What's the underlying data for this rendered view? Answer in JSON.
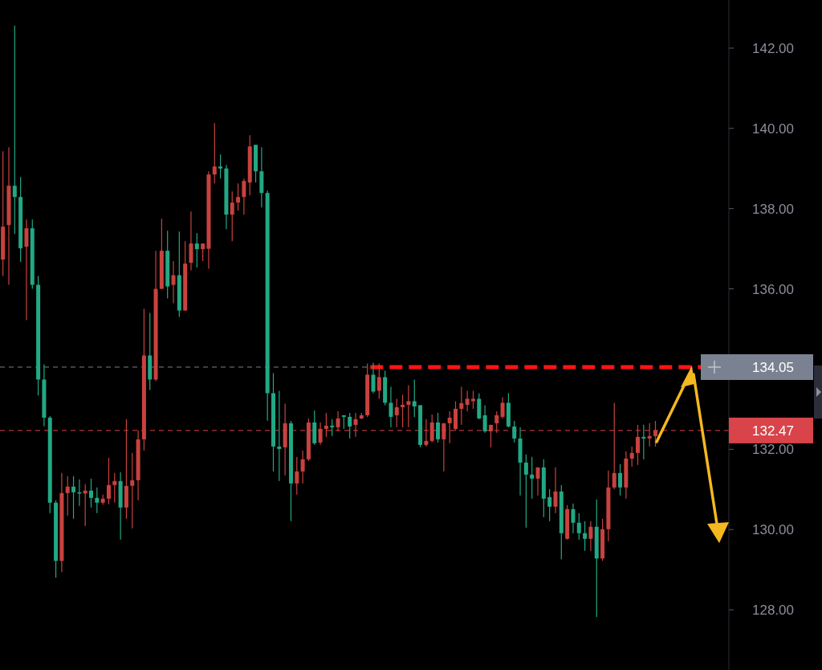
{
  "chart_data": {
    "type": "candlestick",
    "categories": [
      null,
      null,
      null,
      null,
      null,
      null,
      null,
      null,
      null,
      null,
      null,
      null,
      null,
      null,
      null,
      null,
      null,
      null,
      null,
      null,
      null,
      null,
      null,
      null,
      null,
      null,
      null,
      null,
      null,
      null,
      null,
      null,
      null,
      null,
      null,
      null,
      null,
      null,
      null,
      null,
      null,
      null,
      null,
      null,
      null,
      null,
      null,
      null,
      null,
      null,
      null,
      null,
      null,
      null,
      null,
      null,
      null,
      null,
      null,
      null,
      null,
      null,
      null,
      null,
      null,
      null,
      null,
      null,
      null,
      null,
      null,
      null,
      null,
      null,
      null,
      null,
      null,
      null,
      null,
      null,
      null,
      null,
      null,
      null,
      null,
      null,
      null,
      null,
      null,
      null,
      null,
      null,
      null,
      null,
      null,
      null,
      null,
      null,
      null,
      null,
      null,
      null,
      null,
      null,
      null,
      null,
      null,
      null,
      null,
      null,
      null,
      null,
      null,
      null,
      null,
      null,
      null,
      null,
      null,
      null,
      null,
      null,
      null,
      null
    ],
    "ohlc": [
      [
        136.73,
        139.43,
        136.32,
        137.55
      ],
      [
        137.59,
        139.53,
        136.1,
        138.57
      ],
      [
        138.57,
        142.56,
        137.37,
        138.29
      ],
      [
        138.29,
        138.79,
        136.67,
        137.01
      ],
      [
        137.05,
        137.73,
        135.22,
        137.51
      ],
      [
        137.51,
        137.73,
        136.0,
        136.1
      ],
      [
        136.1,
        136.32,
        133.34,
        133.74
      ],
      [
        133.74,
        134.12,
        132.57,
        132.79
      ],
      [
        132.79,
        132.83,
        130.41,
        130.67
      ],
      [
        130.67,
        130.73,
        128.8,
        129.22
      ],
      [
        129.22,
        131.41,
        128.94,
        130.91
      ],
      [
        130.91,
        131.33,
        130.35,
        131.07
      ],
      [
        131.07,
        131.33,
        130.27,
        130.93
      ],
      [
        130.93,
        131.25,
        130.59,
        130.9
      ],
      [
        130.9,
        131.13,
        130.09,
        130.97
      ],
      [
        130.97,
        131.27,
        130.55,
        130.79
      ],
      [
        130.79,
        131.05,
        130.41,
        130.67
      ],
      [
        130.67,
        130.87,
        130.62,
        130.77
      ],
      [
        130.77,
        131.79,
        130.63,
        131.11
      ],
      [
        131.11,
        131.41,
        130.67,
        131.21
      ],
      [
        131.21,
        131.43,
        129.75,
        130.55
      ],
      [
        130.55,
        132.75,
        130.27,
        131.09
      ],
      [
        131.09,
        131.91,
        130.03,
        131.23
      ],
      [
        131.23,
        132.47,
        130.73,
        132.25
      ],
      [
        132.25,
        135.5,
        131.97,
        134.34
      ],
      [
        134.34,
        135.4,
        133.48,
        133.74
      ],
      [
        133.74,
        136.95,
        133.7,
        136.0
      ],
      [
        136.0,
        137.75,
        136.0,
        136.95
      ],
      [
        136.95,
        137.45,
        135.76,
        136.06
      ],
      [
        136.1,
        136.69,
        135.64,
        136.34
      ],
      [
        136.34,
        137.43,
        135.3,
        135.46
      ],
      [
        135.46,
        137.19,
        135.46,
        136.63
      ],
      [
        136.65,
        137.93,
        136.46,
        137.13
      ],
      [
        137.13,
        137.39,
        136.53,
        136.99
      ],
      [
        136.99,
        137.13,
        136.69,
        137.13
      ],
      [
        137.0,
        138.93,
        136.5,
        138.85
      ],
      [
        138.85,
        140.13,
        138.63,
        139.05
      ],
      [
        139.05,
        139.35,
        138.75,
        139.0
      ],
      [
        139.0,
        139.09,
        137.49,
        137.85
      ],
      [
        137.85,
        138.43,
        137.19,
        138.15
      ],
      [
        138.15,
        138.63,
        137.95,
        138.29
      ],
      [
        138.29,
        138.75,
        137.85,
        138.69
      ],
      [
        138.65,
        139.83,
        138.33,
        139.55
      ],
      [
        139.59,
        139.59,
        138.65,
        138.93
      ],
      [
        138.93,
        139.53,
        138.03,
        138.39
      ],
      [
        138.39,
        138.45,
        132.71,
        133.4
      ],
      [
        133.4,
        133.9,
        131.45,
        132.07
      ],
      [
        132.07,
        133.46,
        131.21,
        132.01
      ],
      [
        132.05,
        133.14,
        131.35,
        132.65
      ],
      [
        132.65,
        132.71,
        130.21,
        131.15
      ],
      [
        131.15,
        131.81,
        130.87,
        131.45
      ],
      [
        131.45,
        131.97,
        131.15,
        131.75
      ],
      [
        131.75,
        132.77,
        131.71,
        132.67
      ],
      [
        132.67,
        132.97,
        132.11,
        132.15
      ],
      [
        132.17,
        132.67,
        132.11,
        132.51
      ],
      [
        132.51,
        132.91,
        132.31,
        132.59
      ],
      [
        132.59,
        132.75,
        132.33,
        132.55
      ],
      [
        132.55,
        132.95,
        132.45,
        132.77
      ],
      [
        132.85,
        132.85,
        132.51,
        132.81
      ],
      [
        132.81,
        132.91,
        132.27,
        132.57
      ],
      [
        132.61,
        132.91,
        132.31,
        132.75
      ],
      [
        132.77,
        132.91,
        132.75,
        132.85
      ],
      [
        132.85,
        134.14,
        132.81,
        133.86
      ],
      [
        133.86,
        134.16,
        133.4,
        133.44
      ],
      [
        133.46,
        134.14,
        133.26,
        133.8
      ],
      [
        133.8,
        133.96,
        133.1,
        133.16
      ],
      [
        133.16,
        133.56,
        132.55,
        132.81
      ],
      [
        132.85,
        133.26,
        132.55,
        133.05
      ],
      [
        133.05,
        133.36,
        132.55,
        133.11
      ],
      [
        133.11,
        133.6,
        132.55,
        133.2
      ],
      [
        133.2,
        133.74,
        132.81,
        133.07
      ],
      [
        133.1,
        133.1,
        132.05,
        132.11
      ],
      [
        132.11,
        132.75,
        132.07,
        132.21
      ],
      [
        132.21,
        132.87,
        132.17,
        132.67
      ],
      [
        132.67,
        132.91,
        132.17,
        132.25
      ],
      [
        132.25,
        132.65,
        131.45,
        132.65
      ],
      [
        132.65,
        132.95,
        132.15,
        132.79
      ],
      [
        132.51,
        133.2,
        132.47,
        133.01
      ],
      [
        133.01,
        133.56,
        132.61,
        133.15
      ],
      [
        133.11,
        133.46,
        132.95,
        133.26
      ],
      [
        133.2,
        133.46,
        133.01,
        133.26
      ],
      [
        133.26,
        133.4,
        132.75,
        132.77
      ],
      [
        132.85,
        133.1,
        132.41,
        132.45
      ],
      [
        132.45,
        132.61,
        132.05,
        132.61
      ],
      [
        132.65,
        132.95,
        132.41,
        132.85
      ],
      [
        132.81,
        133.3,
        132.77,
        133.16
      ],
      [
        133.16,
        133.4,
        132.55,
        132.57
      ],
      [
        132.57,
        132.71,
        132.17,
        132.27
      ],
      [
        132.27,
        132.55,
        130.85,
        131.67
      ],
      [
        131.67,
        131.87,
        130.05,
        131.37
      ],
      [
        131.37,
        131.81,
        130.77,
        131.27
      ],
      [
        131.27,
        131.55,
        130.85,
        131.55
      ],
      [
        131.55,
        131.75,
        130.31,
        130.77
      ],
      [
        130.81,
        131.01,
        130.21,
        130.57
      ],
      [
        130.57,
        131.55,
        130.41,
        130.95
      ],
      [
        130.95,
        131.11,
        129.26,
        129.91
      ],
      [
        129.77,
        130.61,
        129.75,
        130.51
      ],
      [
        130.51,
        130.65,
        129.91,
        130.17
      ],
      [
        130.17,
        130.41,
        129.75,
        129.91
      ],
      [
        129.91,
        130.21,
        129.47,
        129.77
      ],
      [
        129.77,
        130.21,
        129.47,
        130.07
      ],
      [
        130.07,
        130.75,
        127.82,
        129.28
      ],
      [
        129.28,
        130.27,
        129.22,
        130.01
      ],
      [
        130.01,
        131.47,
        129.71,
        131.05
      ],
      [
        131.05,
        133.16,
        131.01,
        131.41
      ],
      [
        131.41,
        131.63,
        130.85,
        131.05
      ],
      [
        131.05,
        131.95,
        130.77,
        131.77
      ],
      [
        131.77,
        132.07,
        131.57,
        131.91
      ],
      [
        131.91,
        132.61,
        131.61,
        132.31
      ],
      [
        132.31,
        132.61,
        131.75,
        132.27
      ],
      [
        132.27,
        132.65,
        132.07,
        132.33
      ],
      [
        132.33,
        132.71,
        132.07,
        132.47
      ],
      null,
      null,
      null,
      null,
      null,
      null,
      null,
      null,
      null,
      null,
      null,
      null
    ],
    "colors": [
      "#c8423e",
      "#c8423e",
      "#22a884",
      "#22a884",
      "#c8423e",
      "#22a884",
      "#22a884",
      "#22a884",
      "#22a884",
      "#22a884",
      "#c8423e",
      "#c8423e",
      "#22a884",
      "#22a884",
      "#c8423e",
      "#22a884",
      "#22a884",
      "#c8423e",
      "#c8423e",
      "#c8423e",
      "#22a884",
      "#c8423e",
      "#c8423e",
      "#c8423e",
      "#c8423e",
      "#22a884",
      "#c8423e",
      "#c8423e",
      "#22a884",
      "#c8423e",
      "#22a884",
      "#c8423e",
      "#c8423e",
      "#22a884",
      "#c8423e",
      "#c8423e",
      "#c8423e",
      "#22a884",
      "#22a884",
      "#c8423e",
      "#c8423e",
      "#c8423e",
      "#c8423e",
      "#22a884",
      "#22a884",
      "#22a884",
      "#22a884",
      "#22a884",
      "#c8423e",
      "#22a884",
      "#c8423e",
      "#c8423e",
      "#c8423e",
      "#22a884",
      "#c8423e",
      "#c8423e",
      "#22a884",
      "#c8423e",
      "#22a884",
      "#22a884",
      "#c8423e",
      "#c8423e",
      "#c8423e",
      "#22a884",
      "#c8423e",
      "#22a884",
      "#22a884",
      "#c8423e",
      "#c8423e",
      "#c8423e",
      "#22a884",
      "#22a884",
      "#c8423e",
      "#c8423e",
      "#22a884",
      "#c8423e",
      "#c8423e",
      "#c8423e",
      "#c8423e",
      "#c8423e",
      "#c8423e",
      "#22a884",
      "#22a884",
      "#c8423e",
      "#c8423e",
      "#c8423e",
      "#22a884",
      "#22a884",
      "#22a884",
      "#22a884",
      "#22a884",
      "#c8423e",
      "#22a884",
      "#22a884",
      "#c8423e",
      "#22a884",
      "#c8423e",
      "#22a884",
      "#22a884",
      "#22a884",
      "#c8423e",
      "#22a884",
      "#c8423e",
      "#c8423e",
      "#c8423e",
      "#22a884",
      "#c8423e",
      "#c8423e",
      "#c8423e",
      "#22a884",
      "#c8423e",
      "#c8423e",
      null,
      null,
      null,
      null,
      null,
      null,
      null,
      null,
      null,
      null,
      null,
      null
    ],
    "ylim": [
      126.5,
      143.2
    ],
    "yticks": [
      {
        "value": 128,
        "label": "128.00"
      },
      {
        "value": 130,
        "label": "130.00"
      },
      {
        "value": 132,
        "label": "132.00"
      },
      {
        "value": 136,
        "label": "136.00"
      },
      {
        "value": 138,
        "label": "138.00"
      },
      {
        "value": 140,
        "label": "140.00"
      },
      {
        "value": 142,
        "label": "142.00"
      }
    ],
    "tick_labels": "y",
    "ref_lines": [
      {
        "axis": "y",
        "value": 134.05,
        "label": "134.05",
        "color": "#ff1414",
        "line_style": "dashed"
      },
      {
        "axis": "y",
        "value": 132.47,
        "label": "132.47",
        "color": "#d9434a",
        "line_style": "dashed"
      },
      {
        "axis": "y",
        "value": 134.05,
        "color": "#7a8292",
        "line_style": "dashed"
      }
    ]
  }
}
